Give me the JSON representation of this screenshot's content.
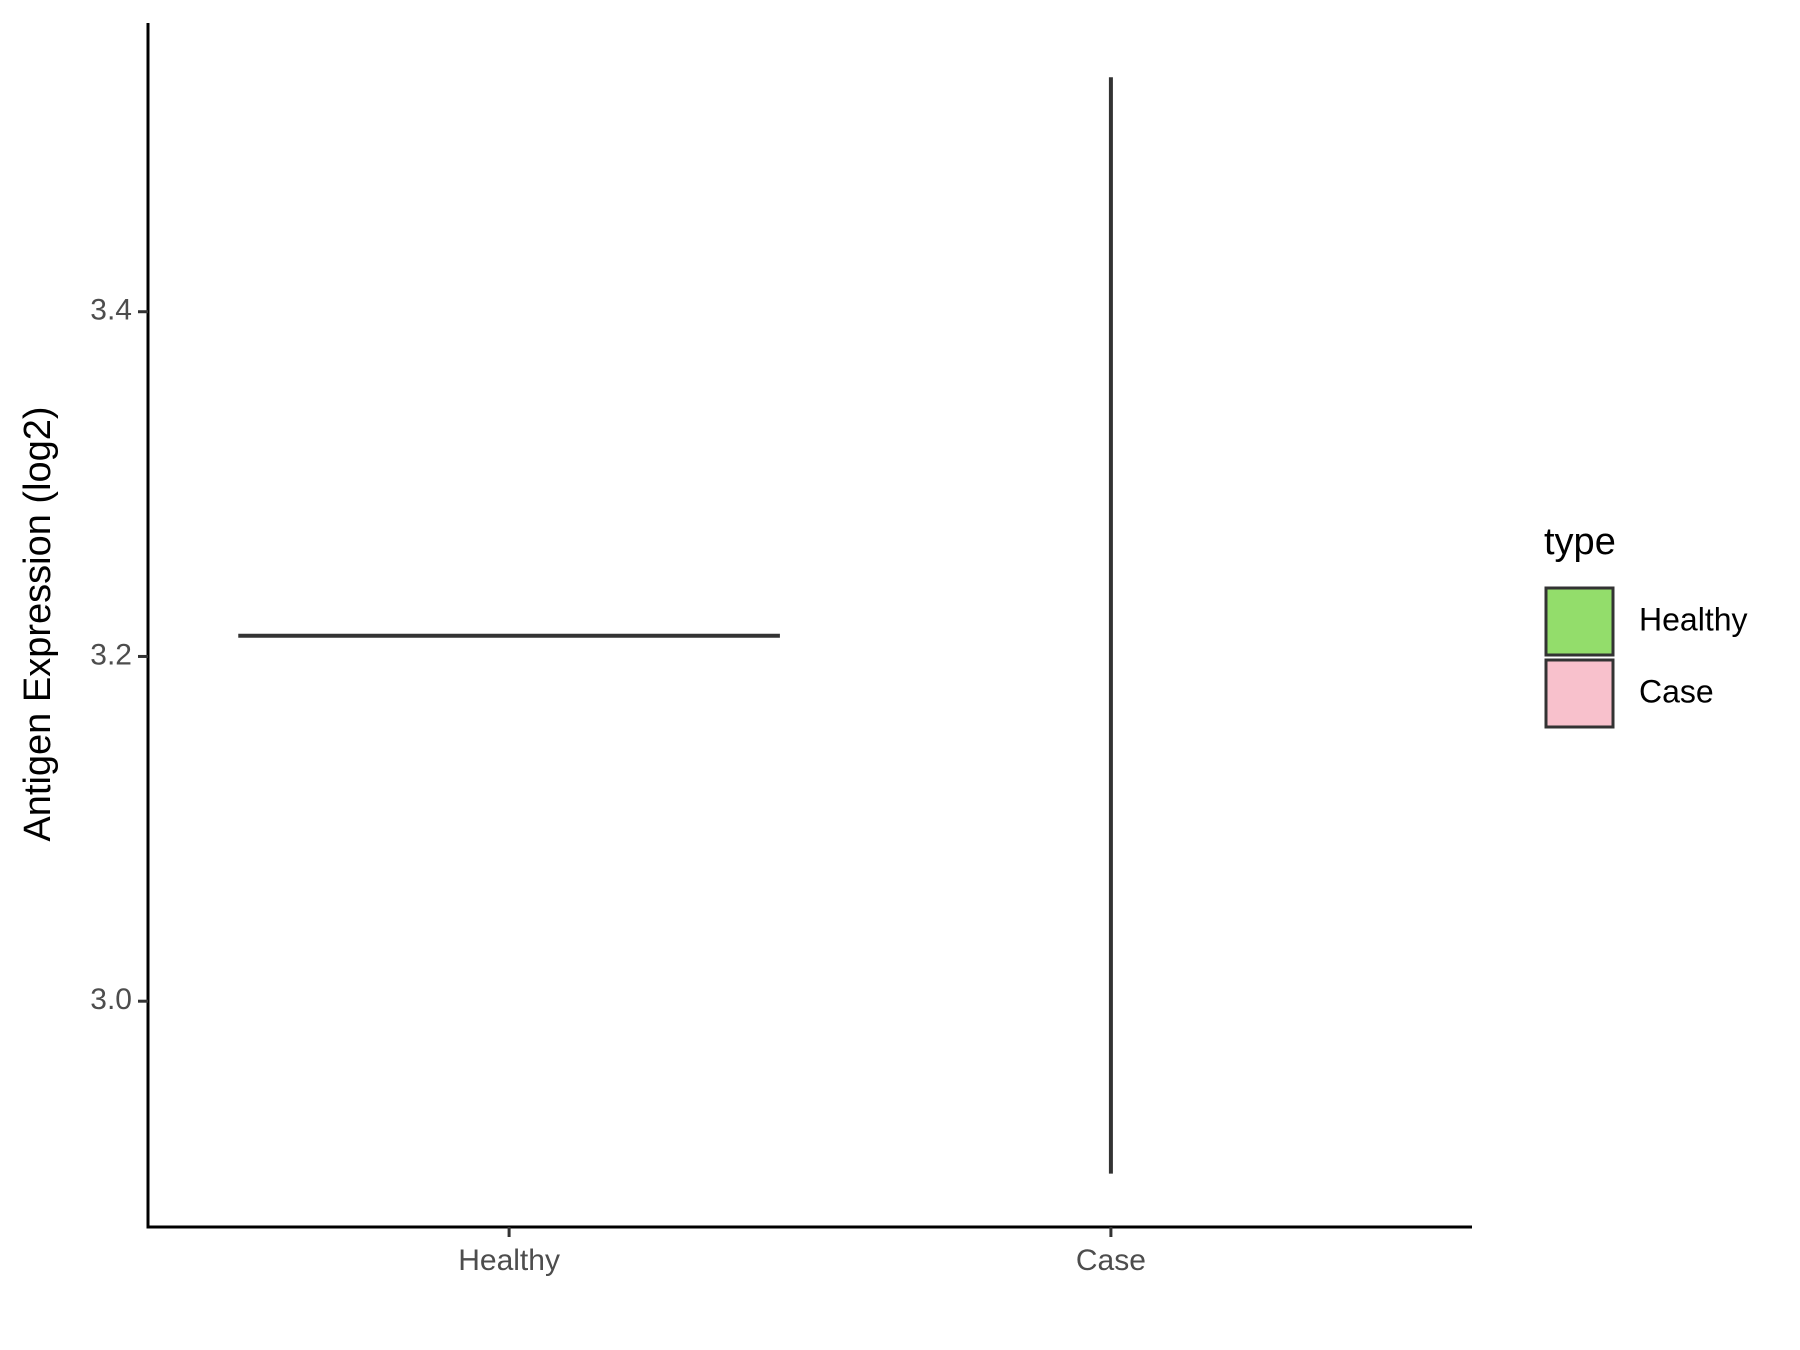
{
  "chart_data": {
    "type": "violin",
    "y_label": "Antigen Expression (log2)",
    "categories": [
      "Healthy",
      "Case"
    ],
    "min": [
      3.212,
      2.9
    ],
    "max": [
      3.212,
      3.536
    ],
    "colors": [
      "#93dd6b",
      "#f8c1cc"
    ],
    "legend_title": "type",
    "legend_position": "right",
    "ylim": [
      2.869,
      3.5675
    ],
    "yticks": [
      {
        "value": 3.0,
        "label": "3.0"
      },
      3.2,
      3.4
    ],
    "grid": false
  }
}
